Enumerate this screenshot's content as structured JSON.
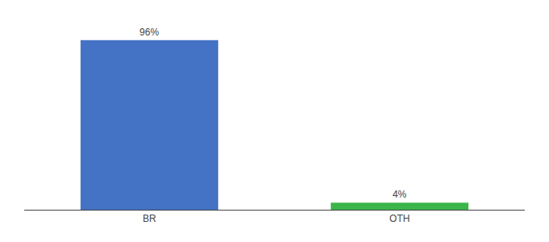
{
  "chart_data": {
    "type": "bar",
    "categories": [
      "BR",
      "OTH"
    ],
    "values": [
      96,
      4
    ],
    "value_labels": [
      "96%",
      "4%"
    ],
    "data_labels": true,
    "colors": [
      "#4472c4",
      "#3cb54a"
    ],
    "ylim": [
      0,
      105
    ],
    "grid": false,
    "tick_labels": "x"
  }
}
